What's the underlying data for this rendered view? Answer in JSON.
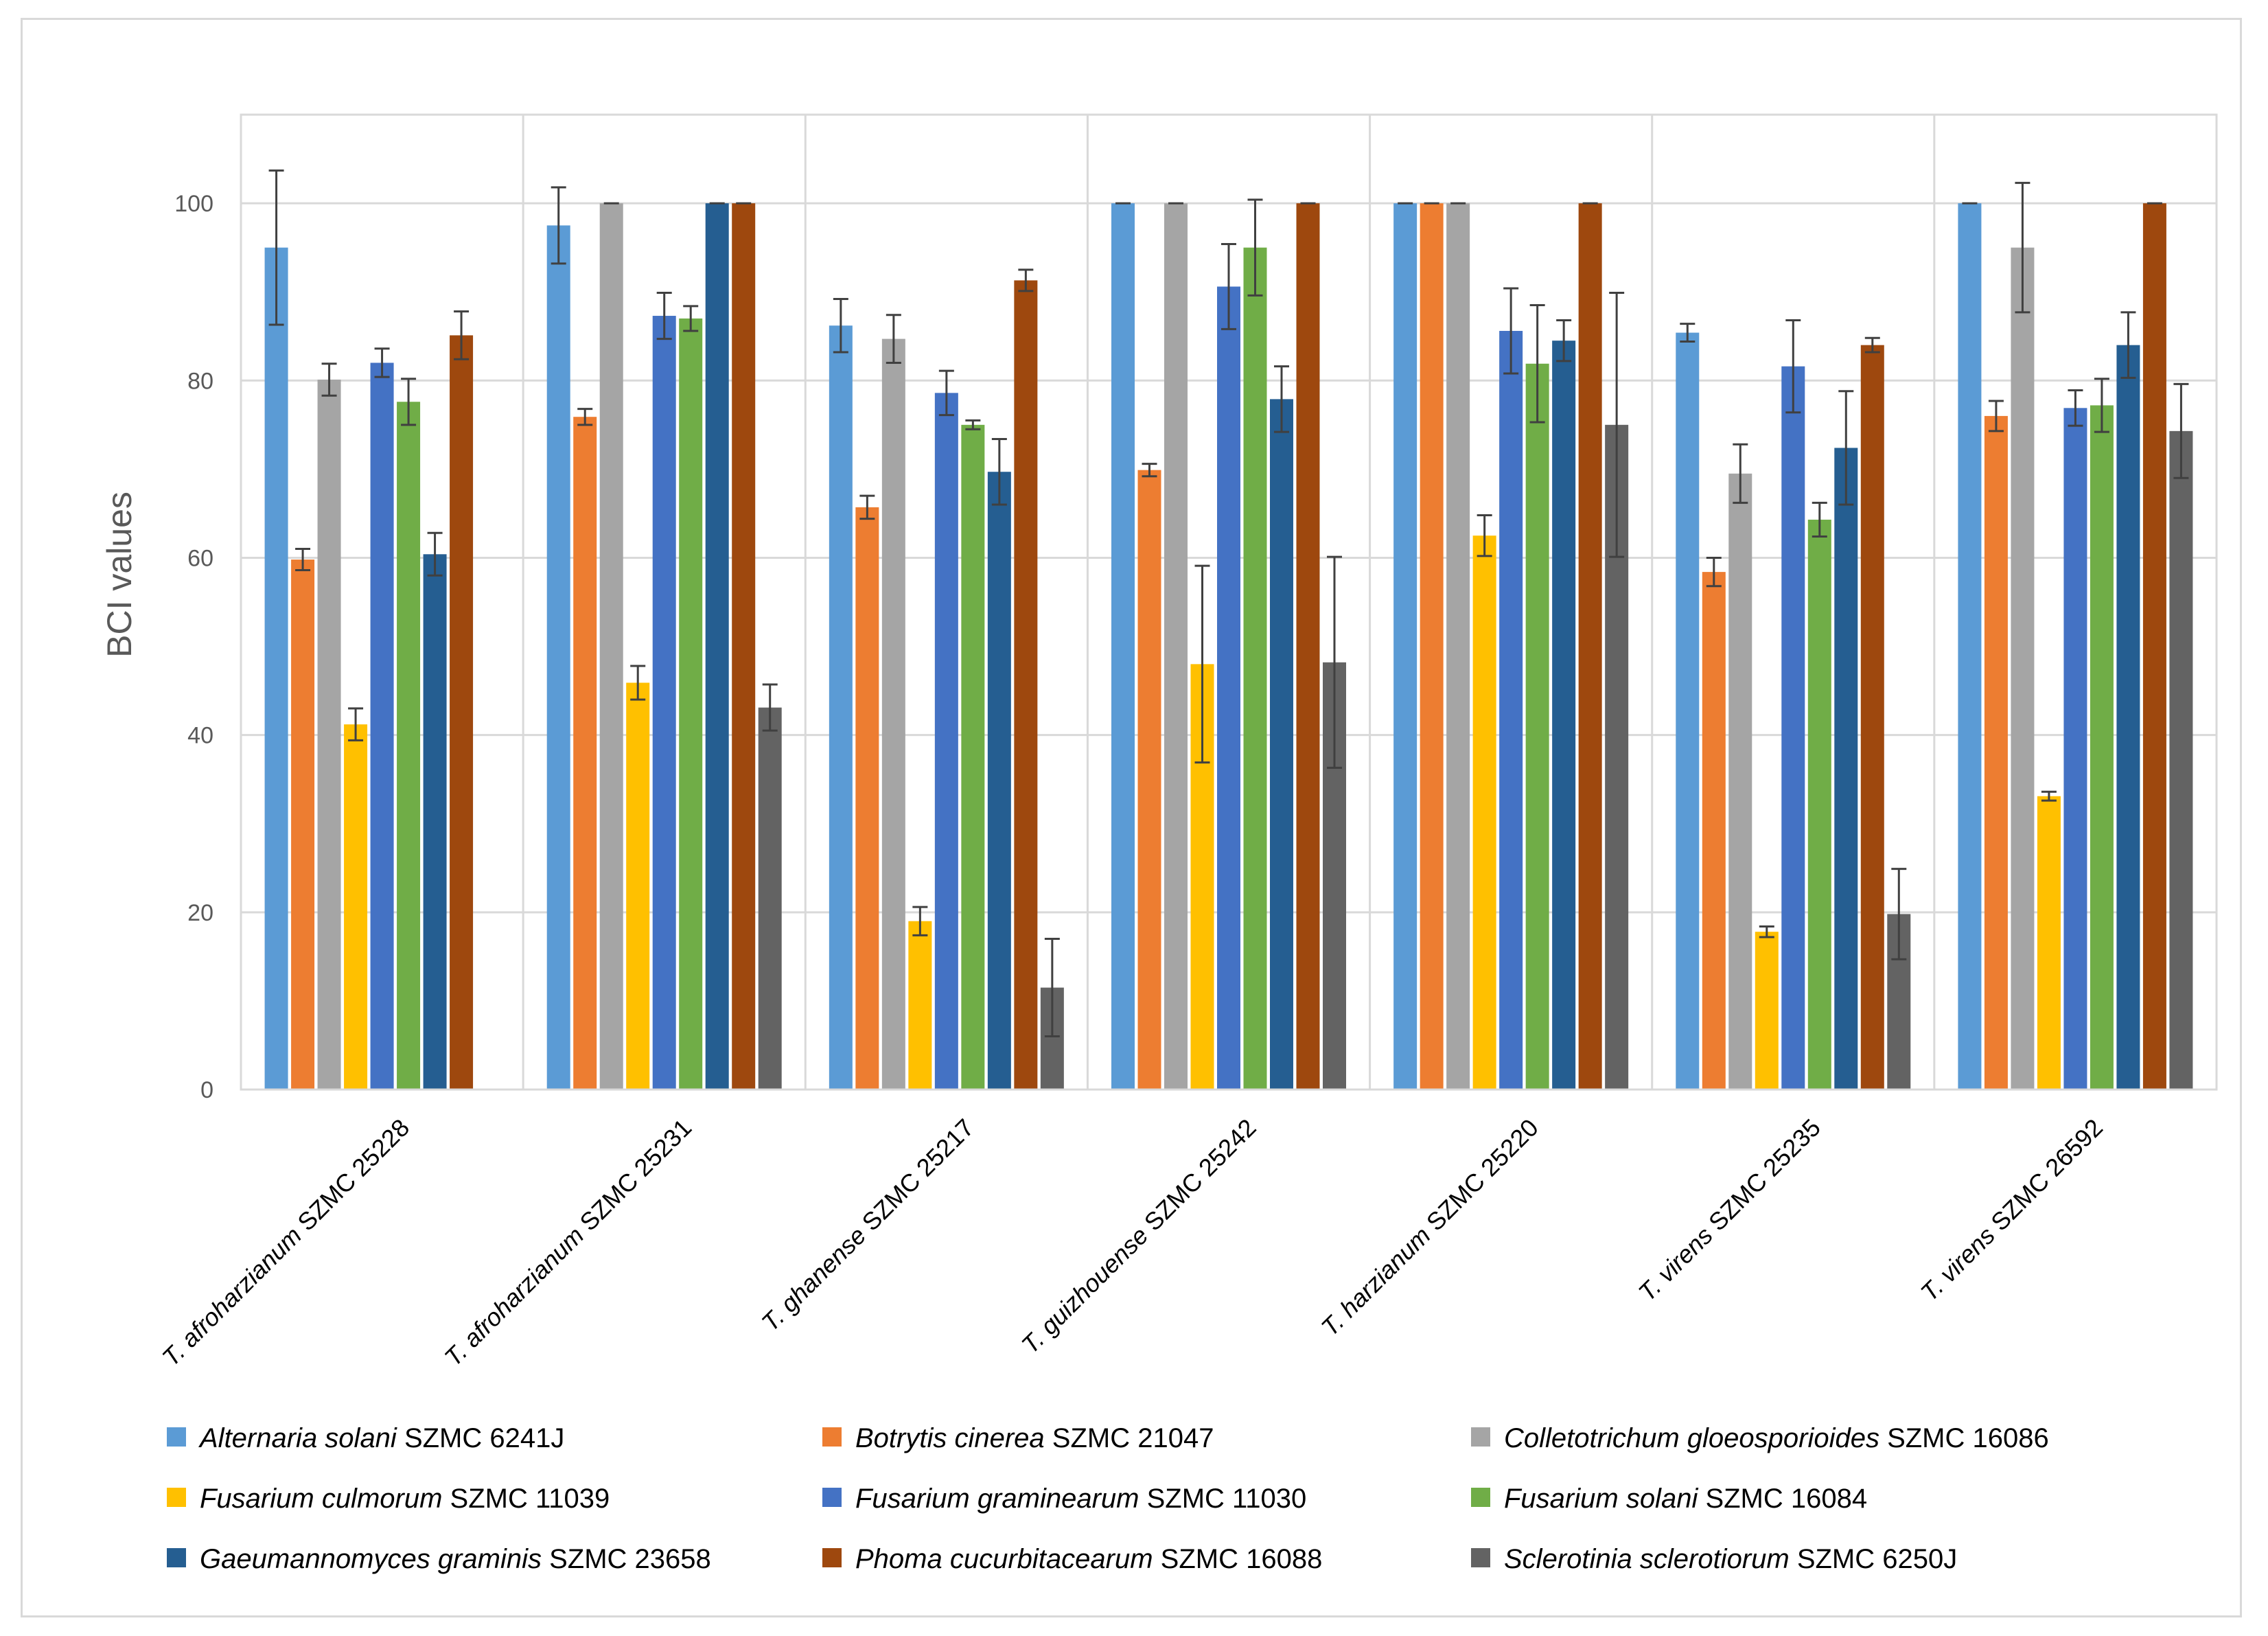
{
  "chart_data": {
    "type": "bar",
    "ylabel": "BCI values",
    "xlabel": "",
    "ylim": [
      0,
      110
    ],
    "yticks": [
      "0",
      "20",
      "40",
      "60",
      "80",
      "100"
    ],
    "grid": true,
    "legend_position": "bottom",
    "categories": [
      {
        "italic": "T. afroharzianum",
        "plain": " SZMC 25228"
      },
      {
        "italic": "T. afroharzianum",
        "plain": " SZMC 25231"
      },
      {
        "italic": "T. ghanense",
        "plain": " SZMC 25217"
      },
      {
        "italic": "T. guizhouense",
        "plain": " SZMC 25242"
      },
      {
        "italic": "T. harzianum",
        "plain": " SZMC 25220"
      },
      {
        "italic": "T. virens",
        "plain": " SZMC 25235"
      },
      {
        "italic": "T. virens",
        "plain": " SZMC 26592"
      }
    ],
    "series": [
      {
        "italic": "Alternaria solani",
        "plain": " SZMC 6241J",
        "color": "#5b9bd5",
        "values": [
          95,
          97.5,
          86.2,
          100,
          100,
          85.4,
          100
        ],
        "errors": [
          8.7,
          4.3,
          3,
          0,
          0,
          1,
          0
        ]
      },
      {
        "italic": "Botrytis cinerea",
        "plain": " SZMC 21047",
        "color": "#ed7d31",
        "values": [
          59.8,
          75.9,
          65.7,
          69.9,
          100,
          58.4,
          76
        ],
        "errors": [
          1.2,
          0.9,
          1.3,
          0.7,
          0,
          1.6,
          1.7
        ]
      },
      {
        "italic": "Colletotrichum gloeosporioides",
        "plain": " SZMC 16086",
        "color": "#a5a5a5",
        "values": [
          80.1,
          100,
          84.7,
          100,
          100,
          69.5,
          95
        ],
        "errors": [
          1.8,
          0,
          2.7,
          0,
          0,
          3.3,
          7.3
        ]
      },
      {
        "italic": "Fusarium culmorum",
        "plain": " SZMC 11039",
        "color": "#ffc000",
        "values": [
          41.2,
          45.9,
          19,
          48,
          62.5,
          17.8,
          33.1
        ],
        "errors": [
          1.8,
          1.9,
          1.6,
          11.1,
          2.3,
          0.6,
          0.5
        ]
      },
      {
        "italic": "Fusarium graminearum",
        "plain": " SZMC 11030",
        "color": "#4472c4",
        "values": [
          82,
          87.3,
          78.6,
          90.6,
          85.6,
          81.6,
          76.9
        ],
        "errors": [
          1.6,
          2.6,
          2.5,
          4.8,
          4.8,
          5.2,
          2
        ]
      },
      {
        "italic": "Fusarium solani",
        "plain": " SZMC 16084",
        "color": "#70ad47",
        "values": [
          77.6,
          87,
          75,
          95,
          81.9,
          64.3,
          77.2
        ],
        "errors": [
          2.6,
          1.4,
          0.5,
          5.4,
          6.6,
          1.9,
          3
        ]
      },
      {
        "italic": "Gaeumannomyces graminis",
        "plain": " SZMC 23658",
        "color": "#255e91",
        "values": [
          60.4,
          100,
          69.7,
          77.9,
          84.5,
          72.4,
          84
        ],
        "errors": [
          2.4,
          0,
          3.7,
          3.7,
          2.3,
          6.4,
          3.7
        ]
      },
      {
        "italic": "Phoma cucurbitacearum",
        "plain": " SZMC 16088",
        "color": "#9e480e",
        "values": [
          85.1,
          100,
          91.3,
          100,
          100,
          84,
          100
        ],
        "errors": [
          2.7,
          0,
          1.2,
          0,
          0,
          0.8,
          0
        ]
      },
      {
        "italic": "Sclerotinia sclerotiorum",
        "plain": " SZMC 6250J",
        "color": "#636363",
        "values": [
          null,
          43.1,
          11.5,
          48.2,
          75,
          19.8,
          74.3
        ],
        "errors": [
          0,
          2.6,
          5.5,
          11.9,
          14.9,
          5.1,
          5.3
        ]
      }
    ]
  }
}
